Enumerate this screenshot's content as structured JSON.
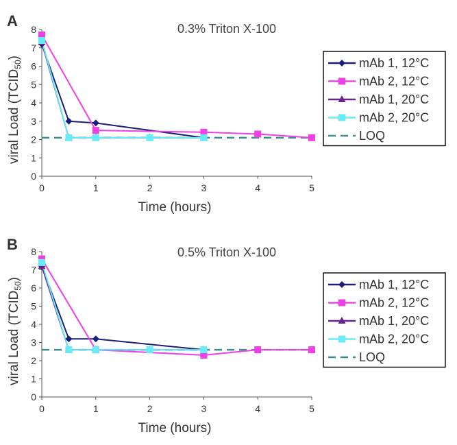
{
  "chart_data": [
    {
      "type": "line",
      "panel_label": "A",
      "title": "0.3% Triton X-100",
      "xlabel": "Time (hours)",
      "ylabel": "viral Load (TCID",
      "ylabel_sub": "50",
      "ylabel_close": ")",
      "xlim": [
        0,
        5
      ],
      "ylim": [
        0,
        8
      ],
      "xticks": [
        "0",
        "1",
        "2",
        "3",
        "4",
        "5"
      ],
      "yticks": [
        "0",
        "1",
        "2",
        "3",
        "4",
        "5",
        "6",
        "7",
        "8"
      ],
      "legend_position": "right",
      "series": [
        {
          "name": "mAb 1, 12°C",
          "color": "#1b1f7a",
          "marker": "diamond",
          "x": [
            0,
            0.5,
            1
          ],
          "y": [
            7.2,
            3.0,
            2.9
          ],
          "extend": [
            [
              1,
              2.9
            ],
            [
              3,
              2.1
            ]
          ]
        },
        {
          "name": "mAb 2, 12°C",
          "color": "#ee40e6",
          "marker": "square",
          "x": [
            0,
            1,
            3,
            4,
            5
          ],
          "y": [
            7.7,
            2.5,
            2.4,
            2.3,
            2.1
          ]
        },
        {
          "name": "mAb 1, 20°C",
          "color": "#6b2290",
          "marker": "triangle",
          "x": [
            0,
            0.5,
            1,
            2,
            3
          ],
          "y": [
            7.3,
            2.1,
            2.1,
            2.1,
            2.1
          ]
        },
        {
          "name": "mAb 2, 20°C",
          "color": "#66ecf6",
          "marker": "square",
          "x": [
            0,
            0.5,
            1,
            2,
            3
          ],
          "y": [
            7.4,
            2.1,
            2.1,
            2.1,
            2.1
          ]
        }
      ],
      "loq": {
        "name": "LOQ",
        "value": 2.1,
        "color": "#3b8c8c"
      }
    },
    {
      "type": "line",
      "panel_label": "B",
      "title": "0.5% Triton X-100",
      "xlabel": "Time (hours)",
      "ylabel": "viral Load (TCID",
      "ylabel_sub": "50",
      "ylabel_close": ")",
      "xlim": [
        0,
        5
      ],
      "ylim": [
        0,
        8
      ],
      "xticks": [
        "0",
        "1",
        "2",
        "3",
        "4",
        "5"
      ],
      "yticks": [
        "0",
        "1",
        "2",
        "3",
        "4",
        "5",
        "6",
        "7",
        "8"
      ],
      "legend_position": "right",
      "series": [
        {
          "name": "mAb 1, 12°C",
          "color": "#1b1f7a",
          "marker": "diamond",
          "x": [
            0,
            0.5,
            1
          ],
          "y": [
            7.2,
            3.2,
            3.2
          ],
          "extend": [
            [
              1,
              3.2
            ],
            [
              3,
              2.6
            ]
          ]
        },
        {
          "name": "mAb 2, 12°C",
          "color": "#ee40e6",
          "marker": "square",
          "x": [
            0,
            1,
            3,
            4,
            5
          ],
          "y": [
            7.6,
            2.6,
            2.3,
            2.6,
            2.6
          ]
        },
        {
          "name": "mAb 1, 20°C",
          "color": "#6b2290",
          "marker": "triangle",
          "x": [
            0,
            0.5,
            1,
            2,
            3
          ],
          "y": [
            7.2,
            2.6,
            2.6,
            2.6,
            2.6
          ]
        },
        {
          "name": "mAb 2, 20°C",
          "color": "#66ecf6",
          "marker": "square",
          "x": [
            0,
            0.5,
            1,
            2,
            3
          ],
          "y": [
            7.4,
            2.6,
            2.6,
            2.6,
            2.6
          ]
        }
      ],
      "loq": {
        "name": "LOQ",
        "value": 2.6,
        "color": "#3b8c8c"
      }
    }
  ]
}
